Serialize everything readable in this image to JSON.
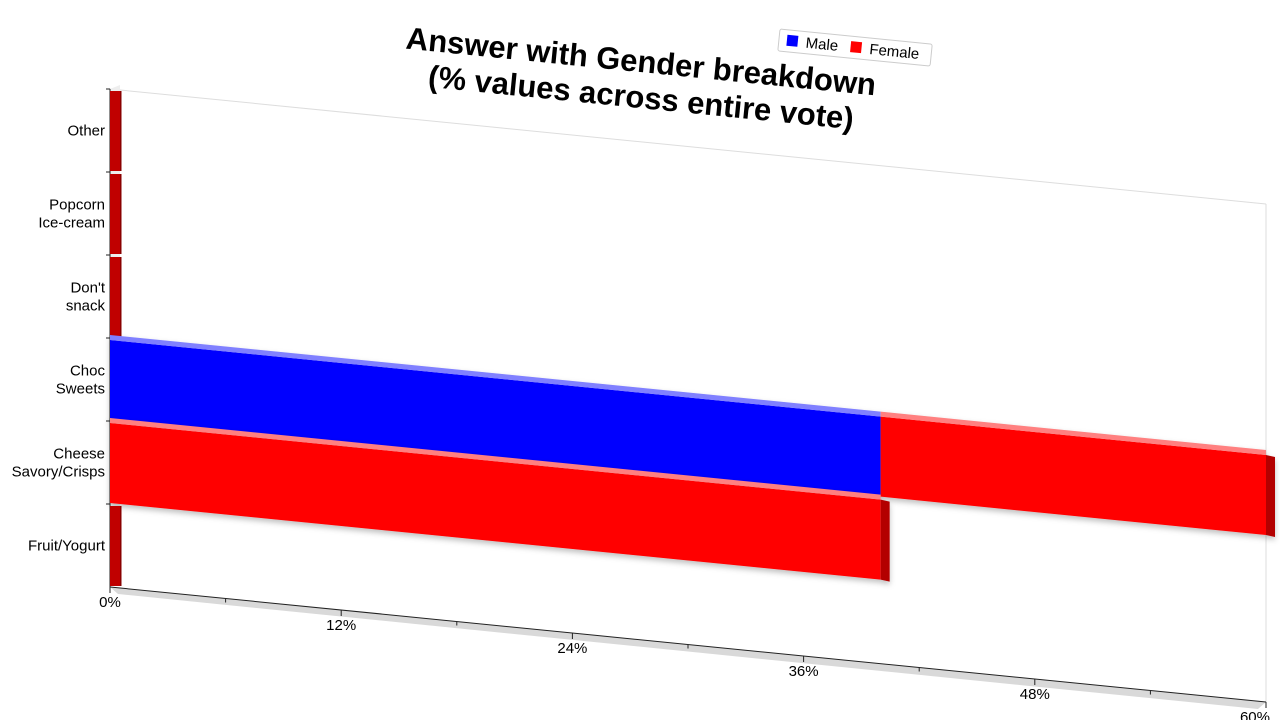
{
  "chart_data": {
    "type": "bar",
    "orientation": "horizontal",
    "stacked": true,
    "title": [
      "Answer with Gender breakdown",
      "(% values across entire vote)"
    ],
    "categories": [
      [
        "Other"
      ],
      [
        "Popcorn",
        "Ice-cream"
      ],
      [
        "Don't",
        "snack"
      ],
      [
        "Choc",
        "Sweets"
      ],
      [
        "Cheese",
        "Savory/Crisps"
      ],
      [
        "Fruit/Yogurt"
      ]
    ],
    "series": [
      {
        "name": "Male",
        "color": "#0000ff",
        "values": [
          0,
          0,
          0,
          40,
          0,
          0
        ]
      },
      {
        "name": "Female",
        "color": "#ff0000",
        "values": [
          0,
          0,
          0,
          20,
          40,
          0
        ]
      }
    ],
    "x_ticks": [
      "0%",
      "12%",
      "24%",
      "36%",
      "48%",
      "60%"
    ],
    "xlim": [
      0,
      60
    ],
    "legend_position": "top-right",
    "grid": false
  }
}
